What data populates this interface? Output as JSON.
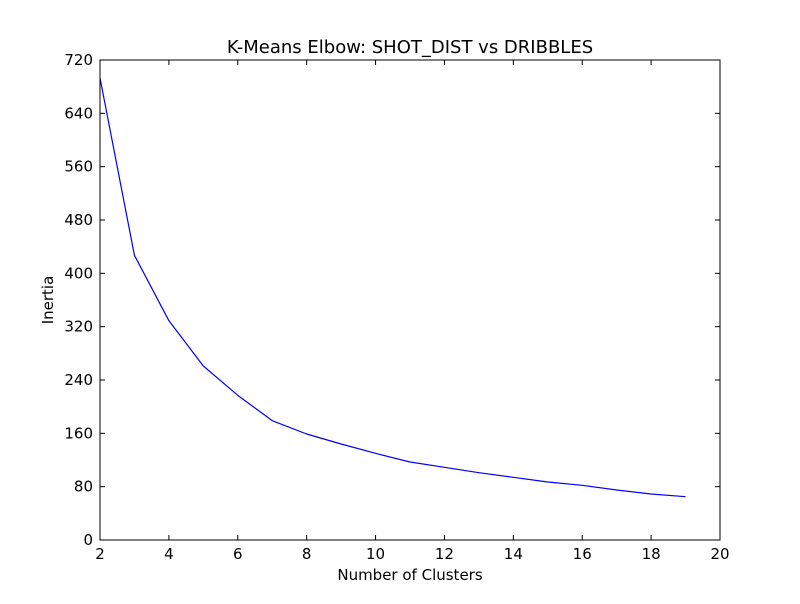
{
  "chart_data": {
    "type": "line",
    "title": "K-Means Elbow: SHOT_DIST vs DRIBBLES",
    "xlabel": "Number of Clusters",
    "ylabel": "Inertia",
    "xlim": [
      2,
      20
    ],
    "ylim": [
      0,
      720
    ],
    "xticks": [
      2,
      4,
      6,
      8,
      10,
      12,
      14,
      16,
      18,
      20
    ],
    "yticks": [
      0,
      80,
      160,
      240,
      320,
      400,
      480,
      560,
      640,
      720
    ],
    "grid": false,
    "legend": "none",
    "series": [
      {
        "color": "#0000ff",
        "x": [
          2,
          3,
          4,
          5,
          6,
          7,
          8,
          9,
          10,
          11,
          12,
          13,
          14,
          15,
          16,
          17,
          18,
          19
        ],
        "y": [
          693,
          427,
          329,
          261,
          217,
          179,
          159,
          144,
          130,
          117,
          109,
          101,
          94,
          87,
          82,
          75,
          69,
          65
        ]
      }
    ]
  }
}
